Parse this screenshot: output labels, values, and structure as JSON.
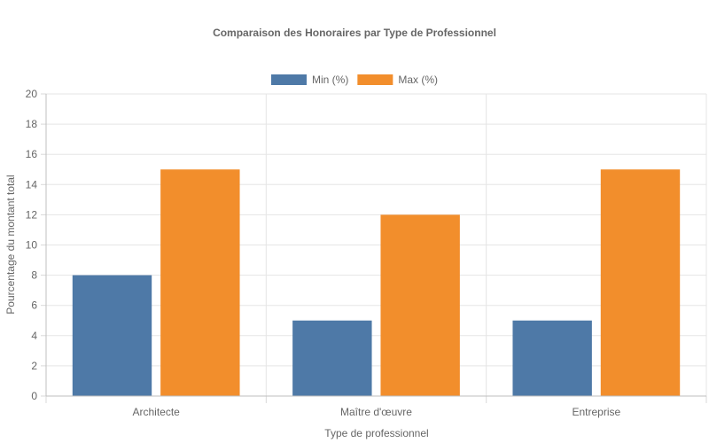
{
  "chart_data": {
    "type": "bar",
    "title": "Comparaison des Honoraires par Type de Professionnel",
    "xlabel": "Type de professionnel",
    "ylabel": "Pourcentage du montant total",
    "categories": [
      "Architecte",
      "Maître d'œuvre",
      "Entreprise"
    ],
    "series": [
      {
        "name": "Min (%)",
        "values": [
          8,
          5,
          5
        ],
        "color": "#4e79a7"
      },
      {
        "name": "Max (%)",
        "values": [
          15,
          12,
          15
        ],
        "color": "#f28e2c"
      }
    ],
    "ylim": [
      0,
      20
    ],
    "yticks": [
      0,
      2,
      4,
      6,
      8,
      10,
      12,
      14,
      16,
      18,
      20
    ],
    "grid": true,
    "legend_position": "top-center"
  }
}
